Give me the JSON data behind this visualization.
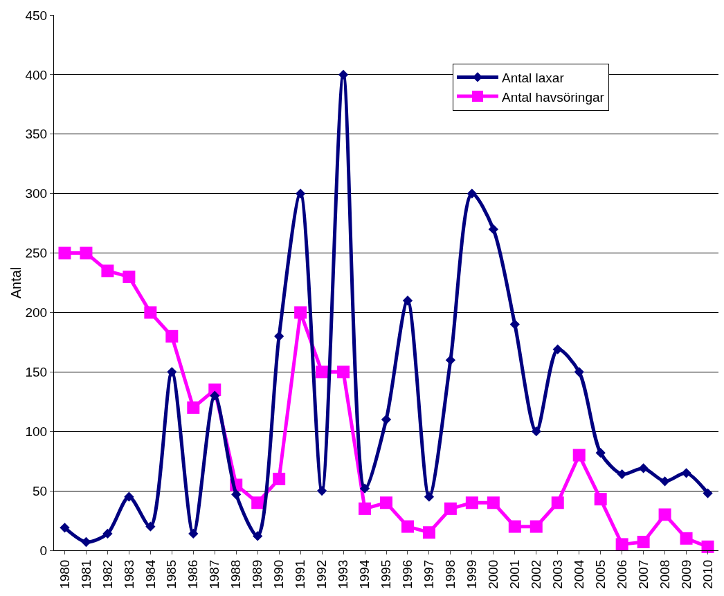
{
  "chart_data": {
    "type": "line",
    "ylabel": "Antal",
    "categories": [
      "1980",
      "1981",
      "1982",
      "1983",
      "1984",
      "1985",
      "1986",
      "1987",
      "1988",
      "1989",
      "1990",
      "1991",
      "1992",
      "1993",
      "1994",
      "1995",
      "1996",
      "1997",
      "1998",
      "1999",
      "2000",
      "2001",
      "2002",
      "2003",
      "2004",
      "2005",
      "2006",
      "2007",
      "2008",
      "2009",
      "2010"
    ],
    "series": [
      {
        "name": "Antal laxar",
        "color": "#000080",
        "marker": "diamond",
        "values": [
          19,
          7,
          14,
          45,
          20,
          150,
          14,
          130,
          47,
          12,
          180,
          300,
          50,
          400,
          52,
          110,
          210,
          45,
          160,
          300,
          270,
          190,
          100,
          169,
          150,
          82,
          64,
          69,
          58,
          65,
          48
        ]
      },
      {
        "name": "Antal havsöringar",
        "color": "#ff00ff",
        "marker": "square",
        "values": [
          250,
          250,
          235,
          230,
          200,
          180,
          120,
          135,
          55,
          40,
          60,
          200,
          150,
          150,
          35,
          40,
          20,
          15,
          35,
          40,
          40,
          20,
          20,
          40,
          80,
          43,
          5,
          7,
          30,
          10,
          3
        ]
      }
    ],
    "ylim": [
      0,
      450
    ],
    "yticks": [
      0,
      50,
      100,
      150,
      200,
      250,
      300,
      350,
      400,
      450
    ],
    "grid": "y",
    "legend": "top right",
    "line_style": "solid"
  }
}
